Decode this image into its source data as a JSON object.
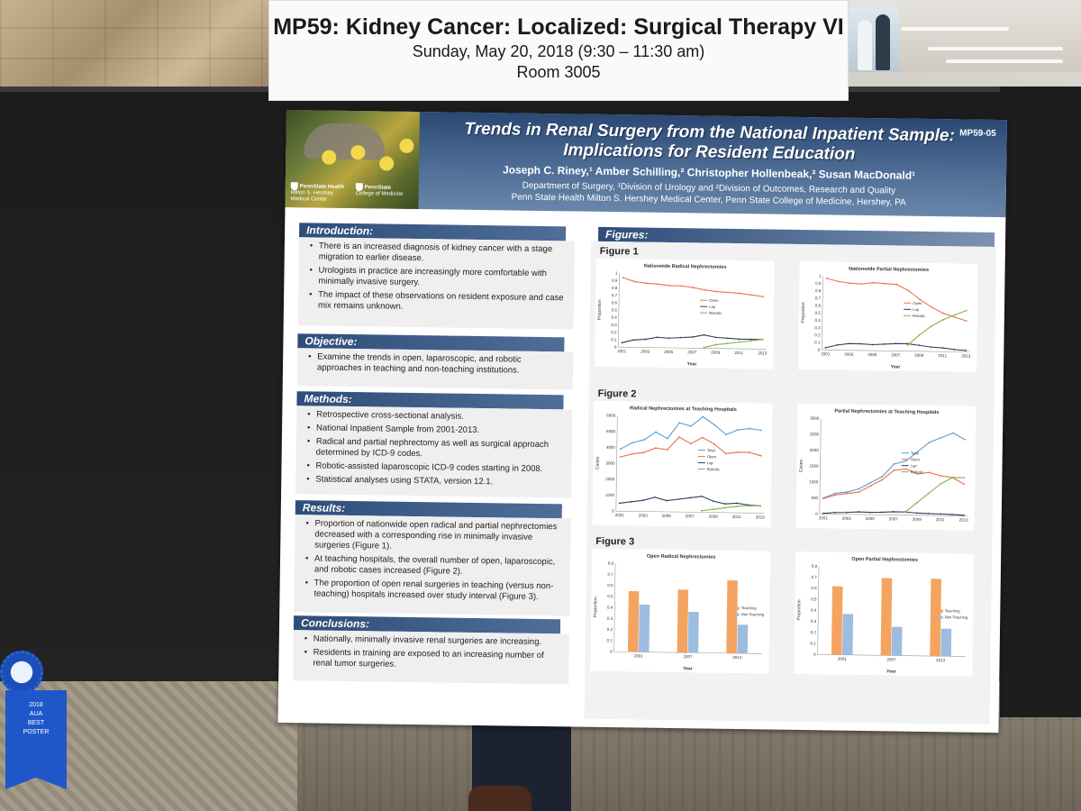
{
  "sign": {
    "title": "MP59: Kidney Cancer: Localized: Surgical Therapy VI",
    "date": "Sunday, May 20, 2018 (9:30 – 11:30 am)",
    "room": "Room 3005"
  },
  "poster": {
    "id": "MP59-05",
    "title_line1": "Trends in Renal Surgery from the National Inpatient Sample:",
    "title_line2": "Implications for Resident Education",
    "authors": "Joseph C. Riney,¹ Amber Schilling,² Christopher Hollenbeak,² Susan MacDonald¹",
    "affil1": "Department of Surgery, ¹Division of Urology and ²Division of Outcomes, Research and Quality",
    "affil2": "Penn State Health Milton S. Hershey Medical Center, Penn State College of Medicine, Hershey, PA",
    "logo1_name": "PennState Health",
    "logo1_sub1": "Milton S. Hershey",
    "logo1_sub2": "Medical Center",
    "logo2_name": "PennState",
    "logo2_sub": "College of Medicine"
  },
  "sections": {
    "introduction": {
      "heading": "Introduction:",
      "bullets": [
        "There is an increased diagnosis of kidney cancer with a stage migration to earlier disease.",
        "Urologists in practice are increasingly more comfortable with minimally invasive surgery.",
        "The impact of these observations on resident exposure and case mix remains unknown."
      ]
    },
    "objective": {
      "heading": "Objective:",
      "bullets": [
        "Examine the trends in open, laparoscopic, and robotic approaches in teaching and non-teaching institutions."
      ]
    },
    "methods": {
      "heading": "Methods:",
      "bullets": [
        "Retrospective cross-sectional analysis.",
        "National Inpatient Sample from 2001-2013.",
        "Radical and partial nephrectomy as well as surgical approach determined by ICD-9 codes.",
        "Robotic-assisted laparoscopic ICD-9 codes starting in 2008.",
        "Statistical analyses using STATA, version 12.1."
      ]
    },
    "results": {
      "heading": "Results:",
      "bullets": [
        "Proportion of nationwide open radical and partial nephrectomies decreased with a corresponding rise in minimally invasive surgeries (Figure 1).",
        "At teaching hospitals, the overall number of open, laparoscopic, and robotic cases increased (Figure 2).",
        "The proportion of open renal surgeries in teaching (versus non-teaching) hospitals increased over study interval (Figure 3)."
      ]
    },
    "conclusions": {
      "heading": "Conclusions:",
      "bullets": [
        "Nationally, minimally invasive renal surgeries are increasing.",
        "Residents in training are exposed to an increasing number of renal tumor surgeries."
      ]
    },
    "figures": {
      "heading": "Figures:"
    }
  },
  "figure_labels": {
    "fig1": "Figure 1",
    "fig2": "Figure 2",
    "fig3": "Figure 3"
  },
  "colors": {
    "open": "#e8734f",
    "lap": "#2c3e5c",
    "robotic": "#8bb04a",
    "total": "#5b9bd5",
    "teaching": "#f4a460",
    "non_teaching": "#9dbde0"
  },
  "chart_data": [
    {
      "type": "line",
      "title": "Nationwide Radical Nephrectomies",
      "xlabel": "Year",
      "ylabel": "Proportion",
      "ylim": [
        0,
        1
      ],
      "yticks": [
        "0",
        "0.1",
        "0.2",
        "0.3",
        "0.4",
        "0.5",
        "0.6",
        "0.7",
        "0.8",
        "0.9",
        "1"
      ],
      "x": [
        2001,
        2002,
        2003,
        2004,
        2005,
        2006,
        2007,
        2008,
        2009,
        2010,
        2011,
        2012,
        2013
      ],
      "xticks": [
        "2001",
        "2003",
        "2005",
        "2007",
        "2009",
        "2011",
        "2013"
      ],
      "series": [
        {
          "name": "Open",
          "color": "#e8734f",
          "values": [
            0.94,
            0.89,
            0.87,
            0.86,
            0.84,
            0.84,
            0.82,
            0.79,
            0.77,
            0.76,
            0.75,
            0.73,
            0.71
          ]
        },
        {
          "name": "Lap",
          "color": "#2c3e5c",
          "values": [
            0.06,
            0.1,
            0.11,
            0.14,
            0.13,
            0.14,
            0.15,
            0.18,
            0.15,
            0.14,
            0.13,
            0.13,
            0.13
          ]
        },
        {
          "name": "Robotic",
          "color": "#8bb04a",
          "values": [
            null,
            null,
            null,
            null,
            null,
            null,
            null,
            0.01,
            0.05,
            0.07,
            0.09,
            0.11,
            0.13
          ]
        }
      ]
    },
    {
      "type": "line",
      "title": "Nationwide Partial Nephrectomies",
      "xlabel": "Year",
      "ylabel": "Proportion",
      "ylim": [
        0,
        1
      ],
      "yticks": [
        "0",
        "0.1",
        "0.2",
        "0.3",
        "0.4",
        "0.5",
        "0.6",
        "0.7",
        "0.8",
        "0.9",
        "1"
      ],
      "x": [
        2001,
        2002,
        2003,
        2004,
        2005,
        2006,
        2007,
        2008,
        2009,
        2010,
        2011,
        2012,
        2013
      ],
      "xticks": [
        "2001",
        "2003",
        "2005",
        "2007",
        "2009",
        "2011",
        "2013"
      ],
      "series": [
        {
          "name": "Open",
          "color": "#e8734f",
          "values": [
            0.97,
            0.93,
            0.91,
            0.9,
            0.92,
            0.91,
            0.9,
            0.82,
            0.7,
            0.6,
            0.52,
            0.47,
            0.42
          ]
        },
        {
          "name": "Lap",
          "color": "#2c3e5c",
          "values": [
            0.03,
            0.07,
            0.09,
            0.09,
            0.08,
            0.09,
            0.1,
            0.1,
            0.08,
            0.06,
            0.05,
            0.03,
            0.02
          ]
        },
        {
          "name": "Robotic",
          "color": "#8bb04a",
          "values": [
            null,
            null,
            null,
            null,
            null,
            null,
            null,
            0.08,
            0.22,
            0.34,
            0.43,
            0.5,
            0.56
          ]
        }
      ]
    },
    {
      "type": "line",
      "title": "Radical Nephrectomies at Teaching Hospitals",
      "xlabel": "",
      "ylabel": "Cases",
      "ylim": [
        0,
        6000
      ],
      "yticks": [
        "0",
        "1000",
        "2000",
        "3000",
        "4000",
        "5000",
        "6000"
      ],
      "x": [
        2001,
        2002,
        2003,
        2004,
        2005,
        2006,
        2007,
        2008,
        2009,
        2010,
        2011,
        2012,
        2013
      ],
      "xticks": [
        "2001",
        "2003",
        "2005",
        "2007",
        "2009",
        "2011",
        "2013"
      ],
      "series": [
        {
          "name": "Total",
          "color": "#5b9bd5",
          "values": [
            3900,
            4300,
            4500,
            5000,
            4600,
            5600,
            5400,
            6000,
            5500,
            4900,
            5200,
            5300,
            5200
          ]
        },
        {
          "name": "Open",
          "color": "#e8734f",
          "values": [
            3400,
            3600,
            3700,
            4000,
            3900,
            4700,
            4300,
            4700,
            4300,
            3700,
            3800,
            3800,
            3600
          ]
        },
        {
          "name": "Lap",
          "color": "#2c3e5c",
          "values": [
            500,
            600,
            700,
            900,
            700,
            800,
            900,
            1000,
            700,
            550,
            600,
            500,
            450
          ]
        },
        {
          "name": "Robotic",
          "color": "#8bb04a",
          "values": [
            null,
            null,
            null,
            null,
            null,
            null,
            null,
            100,
            200,
            300,
            400,
            450,
            450
          ]
        }
      ]
    },
    {
      "type": "line",
      "title": "Partial Nephrectomies at Teaching Hospitals",
      "xlabel": "",
      "ylabel": "Cases",
      "ylim": [
        0,
        3000
      ],
      "yticks": [
        "0",
        "500",
        "1000",
        "1500",
        "2000",
        "2500",
        "3000"
      ],
      "x": [
        2001,
        2002,
        2003,
        2004,
        2005,
        2006,
        2007,
        2008,
        2009,
        2010,
        2011,
        2012,
        2013
      ],
      "xticks": [
        "2001",
        "2003",
        "2005",
        "2007",
        "2009",
        "2011",
        "2013"
      ],
      "series": [
        {
          "name": "Total",
          "color": "#5b9bd5",
          "values": [
            500,
            650,
            700,
            800,
            1000,
            1200,
            1600,
            1700,
            2000,
            2300,
            2450,
            2600,
            2400
          ]
        },
        {
          "name": "Open",
          "color": "#e8734f",
          "values": [
            480,
            600,
            650,
            700,
            900,
            1100,
            1400,
            1450,
            1300,
            1350,
            1250,
            1200,
            1000
          ]
        },
        {
          "name": "Lap",
          "color": "#2c3e5c",
          "values": [
            20,
            50,
            60,
            80,
            70,
            80,
            100,
            100,
            70,
            60,
            50,
            40,
            20
          ]
        },
        {
          "name": "Robotic",
          "color": "#8bb04a",
          "values": [
            null,
            null,
            null,
            null,
            null,
            null,
            null,
            100,
            400,
            700,
            1000,
            1200,
            1200
          ]
        }
      ]
    },
    {
      "type": "bar",
      "title": "Open Radical Nephrectomies",
      "xlabel": "Year",
      "ylabel": "Proportion",
      "ylim": [
        0,
        0.8
      ],
      "yticks": [
        "0",
        "0.1",
        "0.2",
        "0.3",
        "0.4",
        "0.5",
        "0.6",
        "0.7",
        "0.8"
      ],
      "categories": [
        "2001",
        "2007",
        "2013"
      ],
      "series": [
        {
          "name": "Teaching",
          "color": "#f4a460",
          "values": [
            0.55,
            0.57,
            0.66
          ]
        },
        {
          "name": "Non Teaching",
          "color": "#9dbde0",
          "values": [
            0.43,
            0.37,
            0.26
          ]
        }
      ]
    },
    {
      "type": "bar",
      "title": "Open Partial Nephrectomies",
      "xlabel": "Year",
      "ylabel": "Proportion",
      "ylim": [
        0,
        0.8
      ],
      "yticks": [
        "0",
        "0.1",
        "0.2",
        "0.3",
        "0.4",
        "0.5",
        "0.6",
        "0.7",
        "0.8"
      ],
      "categories": [
        "2001",
        "2007",
        "2013"
      ],
      "series": [
        {
          "name": "Teaching",
          "color": "#f4a460",
          "values": [
            0.62,
            0.7,
            0.7
          ]
        },
        {
          "name": "Non Teaching",
          "color": "#9dbde0",
          "values": [
            0.37,
            0.26,
            0.25
          ]
        }
      ]
    }
  ],
  "ribbon": {
    "line1": "2018",
    "line2": "AUA",
    "line3": "BEST",
    "line4": "POSTER"
  }
}
